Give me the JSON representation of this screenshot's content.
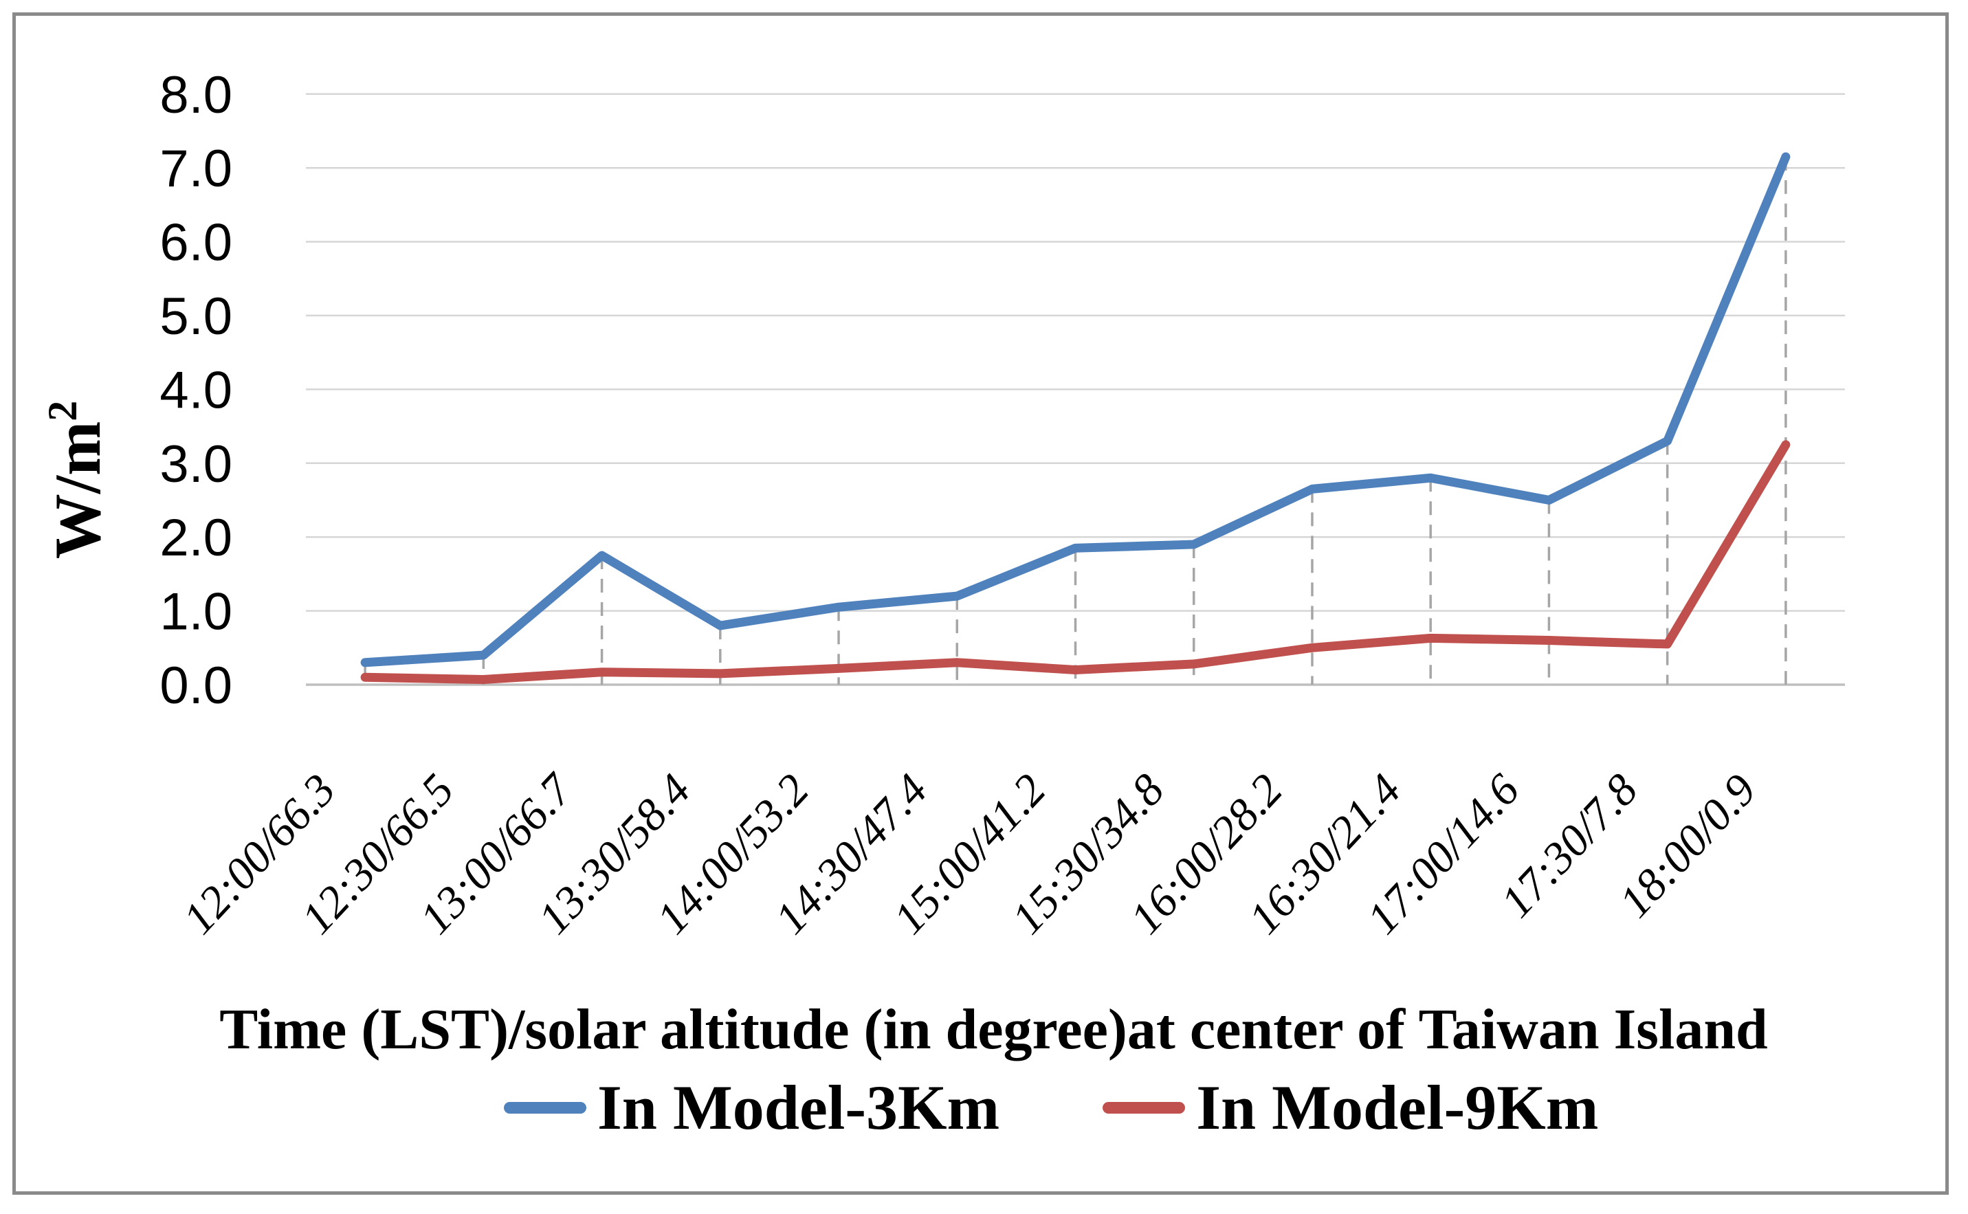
{
  "figure": {
    "y_axis_title": "W/m",
    "y_axis_title_superscript": "2",
    "x_axis_title": "Time (LST)/solar altitude (in degree)at center of Taiwan Island"
  },
  "legend": {
    "items": [
      {
        "label": "In Model-3Km",
        "color": "#4F81BD"
      },
      {
        "label": "In Model-9Km",
        "color": "#C0504D"
      }
    ]
  },
  "colors": {
    "gridline": "#D6D6D6",
    "axis_line": "#BFBFBF",
    "drop_line": "#A6A6A6",
    "series_3km": "#4F81BD",
    "series_9km": "#C0504D",
    "border": "#8A8A8A",
    "text": "#000000"
  },
  "chart_data": {
    "type": "line",
    "title": "",
    "xlabel": "Time (LST)/solar altitude (in degree)at center of Taiwan Island",
    "ylabel": "W/m²",
    "ylim": [
      0,
      8
    ],
    "ytick_interval": 1.0,
    "ytick_labels": [
      "0.0",
      "1.0",
      "2.0",
      "3.0",
      "4.0",
      "5.0",
      "6.0",
      "7.0",
      "8.0"
    ],
    "grid": "horizontal gridlines on",
    "drop_lines": "dashed vertical drop lines from In Model-3Km points down to category axis at every category",
    "legend_position": "bottom center",
    "categories": [
      "12:00/66.3",
      "12:30/66.5",
      "13:00/66.7",
      "13:30/58.4",
      "14:00/53.2",
      "14:30/47.4",
      "15:00/41.2",
      "15:30/34.8",
      "16:00/28.2",
      "16:30/21.4",
      "17:00/14.6",
      "17:30/7.8",
      "18:00/0.9"
    ],
    "series": [
      {
        "name": "In Model-3Km",
        "color": "#4F81BD",
        "values": [
          0.3,
          0.4,
          1.75,
          0.8,
          1.05,
          1.2,
          1.85,
          1.9,
          2.65,
          2.8,
          2.5,
          3.3,
          7.15
        ]
      },
      {
        "name": "In Model-9Km",
        "color": "#C0504D",
        "values": [
          0.1,
          0.07,
          0.17,
          0.15,
          0.22,
          0.3,
          0.2,
          0.28,
          0.5,
          0.63,
          0.6,
          0.55,
          3.25
        ]
      }
    ]
  }
}
